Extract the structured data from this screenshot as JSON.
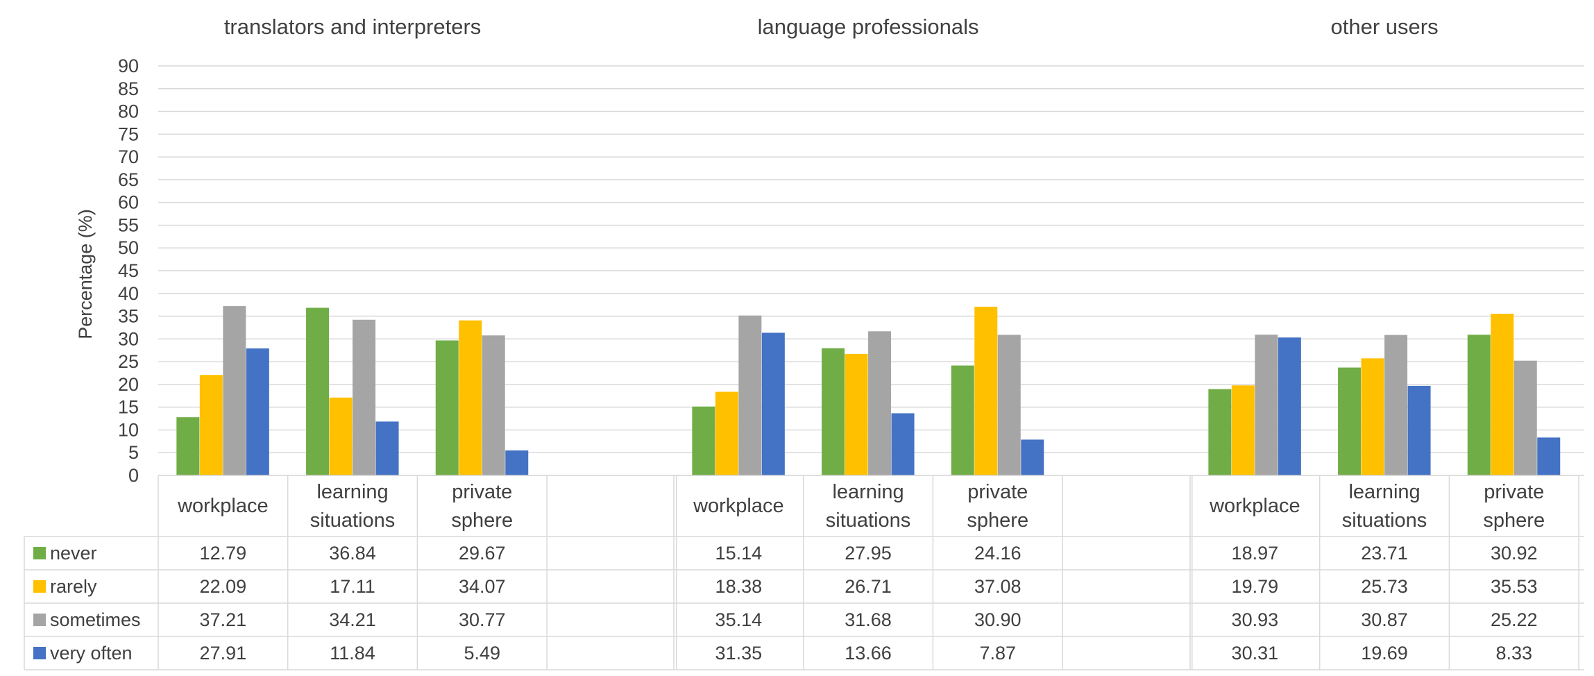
{
  "chart_data": {
    "type": "bar",
    "ylabel": "Percentage (%)",
    "ylim": [
      0,
      90
    ],
    "ytick_step": 5,
    "grid": true,
    "legend": "data table rows (left)",
    "groups": [
      {
        "title": "translators and interpreters",
        "categories": [
          [
            "workplace"
          ],
          [
            "learning",
            "situations"
          ],
          [
            "private",
            "sphere"
          ]
        ],
        "series": [
          {
            "name": "never",
            "values": [
              12.79,
              36.84,
              29.67
            ]
          },
          {
            "name": "rarely",
            "values": [
              22.09,
              17.11,
              34.07
            ]
          },
          {
            "name": "sometimes",
            "values": [
              37.21,
              34.21,
              30.77
            ]
          },
          {
            "name": "very often",
            "values": [
              27.91,
              11.84,
              5.49
            ]
          }
        ]
      },
      {
        "title": "language professionals",
        "categories": [
          [
            "workplace"
          ],
          [
            "learning",
            "situations"
          ],
          [
            "private",
            "sphere"
          ]
        ],
        "series": [
          {
            "name": "never",
            "values": [
              15.14,
              27.95,
              24.16
            ]
          },
          {
            "name": "rarely",
            "values": [
              18.38,
              26.71,
              37.08
            ]
          },
          {
            "name": "sometimes",
            "values": [
              35.14,
              31.68,
              30.9
            ]
          },
          {
            "name": "very often",
            "values": [
              31.35,
              13.66,
              7.87
            ]
          }
        ]
      },
      {
        "title": "other users",
        "categories": [
          [
            "workplace"
          ],
          [
            "learning",
            "situations"
          ],
          [
            "private",
            "sphere"
          ]
        ],
        "series": [
          {
            "name": "never",
            "values": [
              18.97,
              23.71,
              30.92
            ]
          },
          {
            "name": "rarely",
            "values": [
              19.79,
              25.73,
              35.53
            ]
          },
          {
            "name": "sometimes",
            "values": [
              30.93,
              30.87,
              25.22
            ]
          },
          {
            "name": "very often",
            "values": [
              30.31,
              19.69,
              8.33
            ]
          }
        ]
      }
    ],
    "colors": {
      "never": "#70ad47",
      "rarely": "#ffc000",
      "sometimes": "#a5a5a5",
      "very often": "#4472c4"
    },
    "value_format": 2
  }
}
